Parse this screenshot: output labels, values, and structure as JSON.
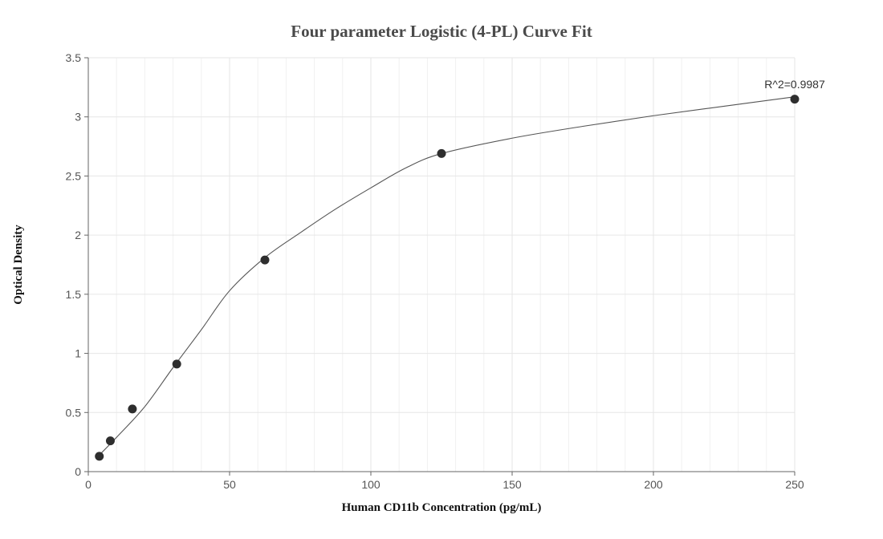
{
  "chart_data": {
    "type": "scatter",
    "title": "Four parameter Logistic (4-PL) Curve Fit",
    "xlabel": "Human CD11b Concentration (pg/mL)",
    "ylabel": "Optical Density",
    "xlim": [
      0,
      250
    ],
    "ylim": [
      0,
      3.5
    ],
    "x_ticks": [
      0,
      50,
      100,
      150,
      200,
      250
    ],
    "y_ticks": [
      0,
      0.5,
      1,
      1.5,
      2,
      2.5,
      3,
      3.5
    ],
    "x_tick_labels": [
      "0",
      "50",
      "100",
      "150",
      "200",
      "250"
    ],
    "y_tick_labels": [
      "0",
      "0.5",
      "1",
      "1.5",
      "2",
      "2.5",
      "3",
      "3.5"
    ],
    "grid": true,
    "points": [
      {
        "x": 3.9,
        "y": 0.13
      },
      {
        "x": 7.8,
        "y": 0.26
      },
      {
        "x": 15.6,
        "y": 0.53
      },
      {
        "x": 31.3,
        "y": 0.91
      },
      {
        "x": 62.5,
        "y": 1.79
      },
      {
        "x": 125,
        "y": 2.69
      },
      {
        "x": 250,
        "y": 3.15
      }
    ],
    "fit_curve": {
      "x": [
        3.9,
        10,
        20,
        30,
        40,
        50,
        62.5,
        75,
        87.5,
        100,
        112.5,
        125,
        150,
        175,
        200,
        225,
        250
      ],
      "y": [
        0.14,
        0.29,
        0.55,
        0.88,
        1.2,
        1.53,
        1.81,
        2.02,
        2.22,
        2.4,
        2.57,
        2.69,
        2.82,
        2.92,
        3.01,
        3.09,
        3.17
      ]
    },
    "annotation": "R^2=0.9987",
    "colors": {
      "point": "#2e2e2e",
      "curve": "#555555",
      "grid": "#e6e6e6",
      "axis": "#666666"
    }
  }
}
